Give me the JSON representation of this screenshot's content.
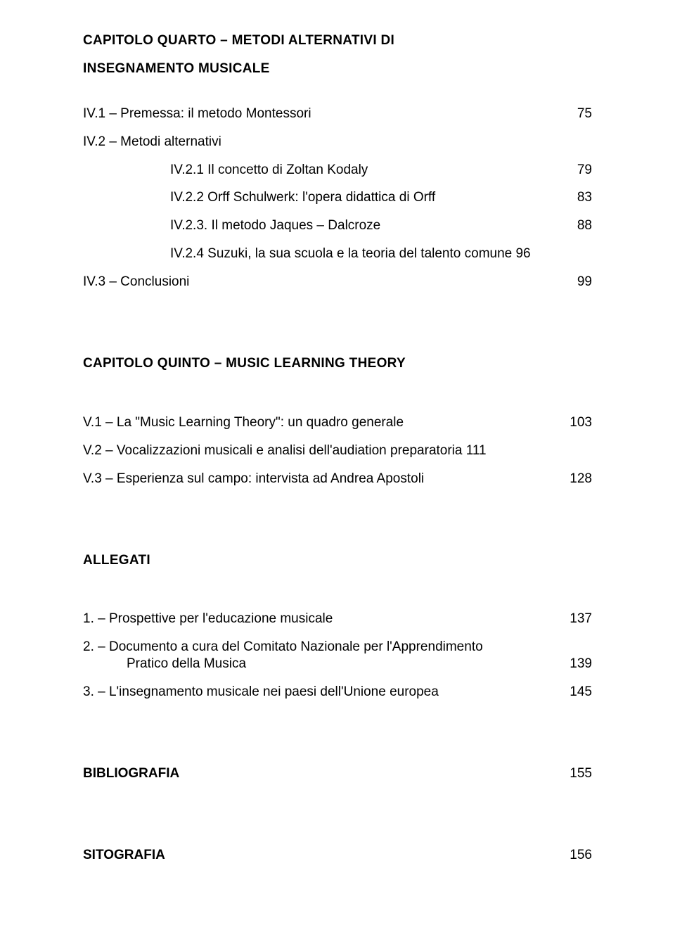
{
  "chapter4": {
    "title_lines": [
      "CAPITOLO QUARTO – METODI ALTERNATIVI DI",
      "INSEGNAMENTO MUSICALE"
    ],
    "items": [
      {
        "label": "IV.1   – Premessa: il metodo Montessori",
        "page": "75",
        "indent": 0
      },
      {
        "label": "IV.2   – Metodi alternativi",
        "page": "",
        "indent": 0
      },
      {
        "label": "IV.2.1 Il concetto di Zoltan Kodaly",
        "page": "79",
        "indent": 2
      },
      {
        "label": "IV.2.2 Orff Schulwerk: l'opera didattica di Orff",
        "page": "83",
        "indent": 2
      },
      {
        "label": "IV.2.3. Il metodo Jaques – Dalcroze",
        "page": "88",
        "indent": 2
      },
      {
        "label": "IV.2.4 Suzuki, la sua scuola e la teoria del talento comune 96",
        "page": "",
        "indent": 2
      },
      {
        "label": "IV.3   – Conclusioni",
        "page": "99",
        "indent": 0
      }
    ]
  },
  "chapter5": {
    "title": "CAPITOLO QUINTO – MUSIC LEARNING THEORY",
    "items": [
      {
        "label": "V.1    – La \"Music Learning Theory\": un quadro generale",
        "page": "103",
        "indent": 0
      },
      {
        "label": "V.2    – Vocalizzazioni musicali e analisi dell'audiation preparatoria 111",
        "page": "",
        "indent": 0
      },
      {
        "label": "V.3    – Esperienza sul campo: intervista ad Andrea Apostoli",
        "page": "128",
        "indent": 0
      }
    ]
  },
  "allegati": {
    "title": "ALLEGATI",
    "items": [
      {
        "label": "1.      – Prospettive per l'educazione musicale",
        "page": "137"
      },
      {
        "label_lines": [
          "2.      – Documento a cura del Comitato Nazionale per l'Apprendimento",
          "Pratico della Musica"
        ],
        "page": "139"
      },
      {
        "label": "3.      – L'insegnamento musicale nei paesi dell'Unione europea",
        "page": "145"
      }
    ]
  },
  "biblio": {
    "title": "BIBLIOGRAFIA",
    "page": "155"
  },
  "sito": {
    "title": "SITOGRAFIA",
    "page": "156"
  }
}
